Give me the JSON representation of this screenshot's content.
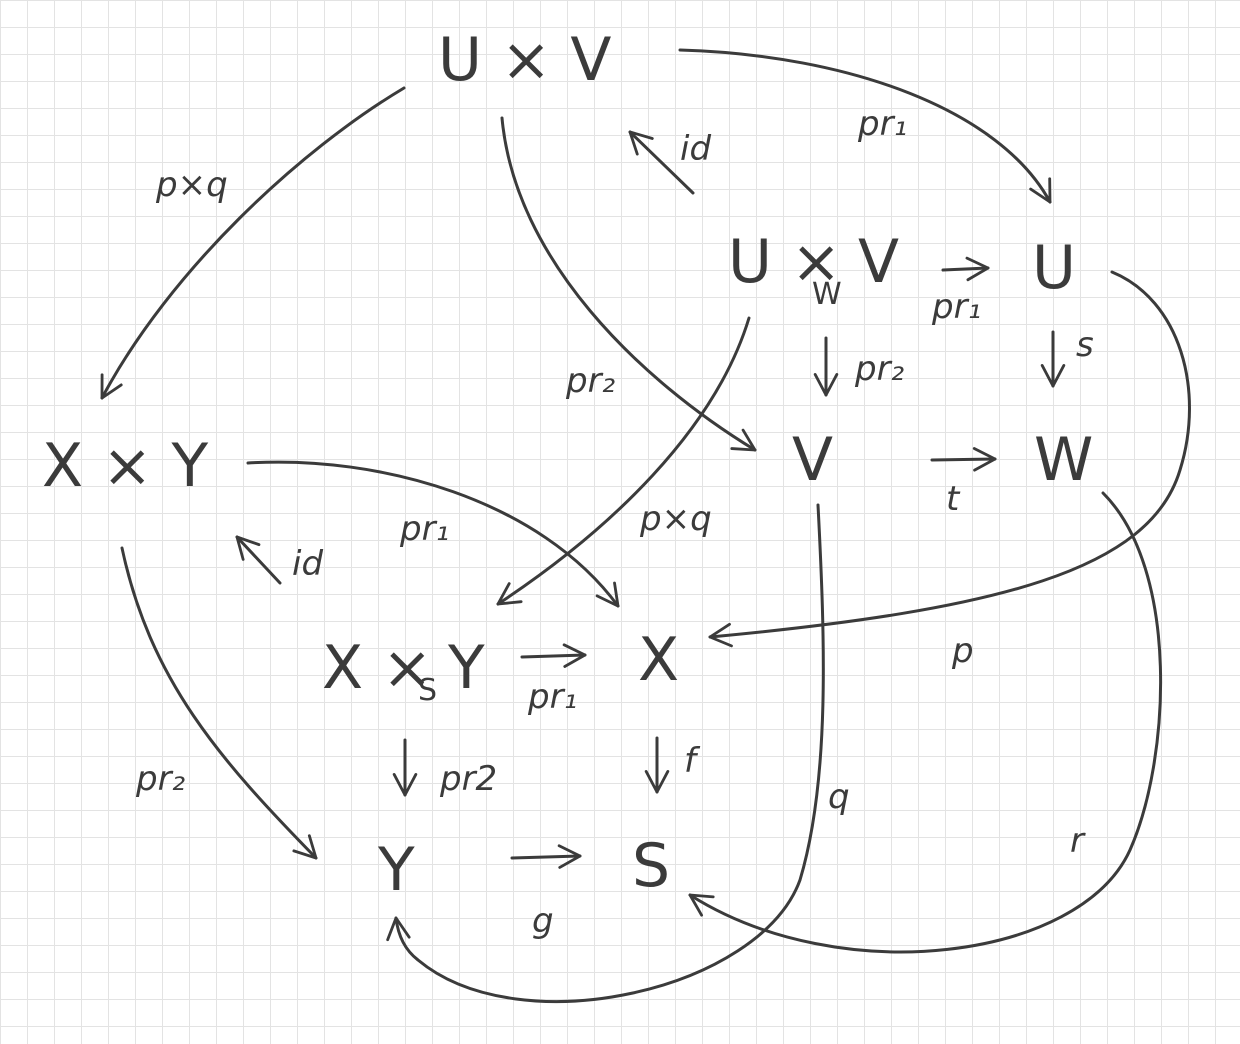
{
  "objects": {
    "uxv": "U × V",
    "u_w_v_left": "U ×",
    "u_w_v_sub": "W",
    "u_w_v_right": "V",
    "u": "U",
    "v": "V",
    "w": "W",
    "x_times_y": "X × Y",
    "x_s_y_left": "X ×",
    "x_s_y_sub": "S",
    "x_s_y_right": "Y",
    "x": "X",
    "y": "Y",
    "s": "S"
  },
  "labels": {
    "pxq_top": "p×q",
    "pr1_top": "pr₁",
    "id_top": "id",
    "pr1_right": "pr₁",
    "pr2_right": "pr₂",
    "s_map": "s",
    "t_map": "t",
    "pr2_mid": "pr₂",
    "pxq_mid": "p×q",
    "pr1_mid": "pr₁",
    "id_mid": "id",
    "p_map": "p",
    "pr1_bottom": "pr₁",
    "pr2_bottom": "pr2",
    "f_map": "f",
    "pr2_left": "pr₂",
    "g_map": "g",
    "q_map": "q",
    "r_map": "r"
  }
}
